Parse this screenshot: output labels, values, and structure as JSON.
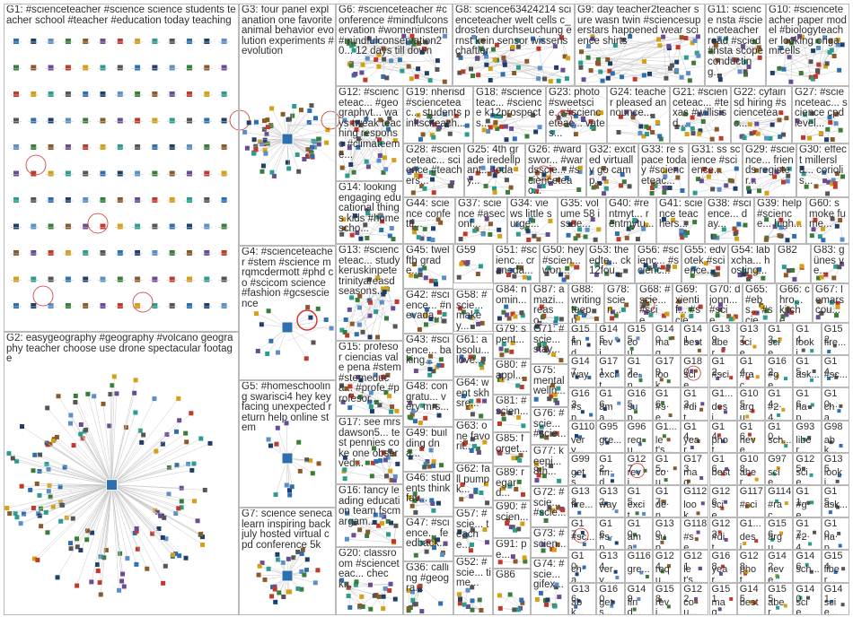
{
  "groups": [
    {
      "id": "G1",
      "label": "G1: #scienceteacher #science science students teacher school #teacher #education today teaching"
    },
    {
      "id": "G2",
      "label": "G2: easygeography #geography #volcano geography teacher choose use drone spectacular footage"
    },
    {
      "id": "G3",
      "label": "G3: four panel explanation one favorite animal behavior evolution experiments #evolution"
    },
    {
      "id": "G4",
      "label": "G4: #scienceteacher #stem #science mrqmcdermott #phd co #scicom science #fashion #gcsescience"
    },
    {
      "id": "G5",
      "label": "G5: #homeschooling swarisci4 hey key facing unexpected return help online stem"
    },
    {
      "id": "G6",
      "label": "G6: #scienceteacher #conference #mindfulconservation #womeninstem #mindfulconservation20... 12 days till down"
    },
    {
      "id": "G7",
      "label": "G7: science senecalearn inspiring back july hosted virtual cpd conference 5k"
    },
    {
      "id": "G8",
      "label": "G8: science63424214 scienceteacher welt cells c_drosten durchseuchung ernst kein sensor wissenschaftler"
    },
    {
      "id": "G9",
      "label": "G9: day teacher2teacher sure wasn twin #sciencesuperstars happened wear science shirts"
    },
    {
      "id": "G10",
      "label": "G10: #scienceteacher paper model #biologyteacher looking origamicells"
    },
    {
      "id": "G11",
      "label": "G11: science nsta #scienceteacher read #scied #nsta scope conducting..."
    },
    {
      "id": "G12",
      "label": "G12: #scienceteac... #geographyt... ways tweak teaching response #climateeme..."
    },
    {
      "id": "G13",
      "label": "G13: #scienceteac... study keruskinpete trinityareasd seasons..."
    },
    {
      "id": "G14",
      "label": "G14: looking engaging educational things kids #homescho..."
    },
    {
      "id": "G15",
      "label": "G15: profesor ciencias vale pena #stem #stemeduca... #profe #profesor..."
    },
    {
      "id": "G16",
      "label": "G16: fancy leading education team fscmargam..."
    },
    {
      "id": "G17",
      "label": "G17: see mrsdawson5... test pennies coke one observed..."
    },
    {
      "id": "G18",
      "label": "G18: #scienceteac... #science k12prospects..."
    },
    {
      "id": "G19",
      "label": "G19: nherisd #scienceteac... students pinksciteach..."
    },
    {
      "id": "G20",
      "label": "G20: classroom #scienceteac... check..."
    },
    {
      "id": "G21",
      "label": "G21: #scienceteac... #texas #willisisd..."
    },
    {
      "id": "G22",
      "label": "G22: cyfairisd hiring #scienceteac..."
    },
    {
      "id": "G23",
      "label": "G23: photo #sweetscie... #scienceteac... vates..."
    },
    {
      "id": "G24",
      "label": "G24: teacher pleased announce..."
    },
    {
      "id": "G25",
      "label": "G25: 4th grade iredellpant... today..."
    },
    {
      "id": "G26",
      "label": "G26: #wardswor... #wardsscie... #scienceteac..."
    },
    {
      "id": "G27",
      "label": "G27: #scienceteac... science cpd level..."
    },
    {
      "id": "G28",
      "label": "G28: #scienceteac... science #teachers..."
    },
    {
      "id": "G29",
      "label": "G29: #science... friends register..."
    },
    {
      "id": "G30",
      "label": "G30: effect millersla... coriolis..."
    },
    {
      "id": "G31",
      "label": "G31: ss science #science..."
    },
    {
      "id": "G32",
      "label": "G32: excited virtually go camp..."
    },
    {
      "id": "G33",
      "label": "G33: re space today #scienceteac..."
    },
    {
      "id": "G34",
      "label": "G34: views little surge..."
    },
    {
      "id": "G35",
      "label": "G35: volume 58 issue..."
    },
    {
      "id": "G36",
      "label": "G36: calling #geogra..."
    },
    {
      "id": "G37",
      "label": "G37: science #aseconf..."
    },
    {
      "id": "G38",
      "label": "G38: #science... day..."
    },
    {
      "id": "G39",
      "label": "G39: help #science... high..."
    },
    {
      "id": "G40",
      "label": "G40: #rentmyt... rentmytu..."
    },
    {
      "id": "G41",
      "label": "G41: science teachers..."
    },
    {
      "id": "G42",
      "label": "G42: #science... #nevada..."
    },
    {
      "id": "G43",
      "label": "G43: #science... baking..."
    },
    {
      "id": "G44",
      "label": "G44: science confetti..."
    },
    {
      "id": "G45",
      "label": "G45: twelfth grade..."
    },
    {
      "id": "G46",
      "label": "G46: students think fav..."
    },
    {
      "id": "G47",
      "label": "G47: #science... feedback..."
    },
    {
      "id": "G48",
      "label": "G48: congratu... very mrs..."
    },
    {
      "id": "G49",
      "label": "G49: building dna..."
    },
    {
      "id": "G50",
      "label": "G50: hey #scien... won..."
    },
    {
      "id": "G51",
      "label": "G51: #scienc... craneda..."
    },
    {
      "id": "G52",
      "label": "G52: #scie... time..."
    },
    {
      "id": "G53",
      "label": "G53: theedte... ck12fou..."
    },
    {
      "id": "G54",
      "label": "G54: labxcha... hosting..."
    },
    {
      "id": "G55",
      "label": "G55: edvotek #science..."
    },
    {
      "id": "G56",
      "label": "G56: #scienc... #scienc..."
    },
    {
      "id": "G57",
      "label": "G57: #scie... teache..."
    },
    {
      "id": "G58",
      "label": "G58: #scie... makey..."
    },
    {
      "id": "G59",
      "label": "G59"
    },
    {
      "id": "G60",
      "label": "G60: smoke fume..."
    },
    {
      "id": "G61",
      "label": "G61: absolu... love..."
    },
    {
      "id": "G62",
      "label": "G62: fall pumpk..."
    },
    {
      "id": "G63",
      "label": "G63: one favorit..."
    },
    {
      "id": "G64",
      "label": "G64: went skhsre..."
    },
    {
      "id": "G65",
      "label": "G65: #ebs... #scie..."
    },
    {
      "id": "G66",
      "label": "G66: chro... kitche..."
    },
    {
      "id": "G67",
      "label": "G67: lemars cou..."
    },
    {
      "id": "G68",
      "label": "G68: #scie... #scie..."
    },
    {
      "id": "G69",
      "label": "G69: xientif... #scie..."
    },
    {
      "id": "G70",
      "label": "G70: djonn... #scie..."
    },
    {
      "id": "G71",
      "label": "G71: #scie... stay..."
    },
    {
      "id": "G72",
      "label": "G72: #scie... #scie..."
    },
    {
      "id": "G73",
      "label": "G73: #scien..."
    },
    {
      "id": "G74",
      "label": "G74: #scie... gifex..."
    },
    {
      "id": "G75",
      "label": "G75: mental welln..."
    },
    {
      "id": "G76",
      "label": "G76: #scie... #scie..."
    },
    {
      "id": "G77",
      "label": "G77: keepi... 8th..."
    },
    {
      "id": "G78",
      "label": "G78: scien..."
    },
    {
      "id": "G79",
      "label": "G79: spent..."
    },
    {
      "id": "G80",
      "label": "G80: #appl..."
    },
    {
      "id": "G81",
      "label": "G81: #scien..."
    },
    {
      "id": "G82",
      "label": "G82"
    },
    {
      "id": "G83",
      "label": "G83: günes ve..."
    },
    {
      "id": "G84",
      "label": "G84: nomin..."
    },
    {
      "id": "G85",
      "label": "G85: forget..."
    },
    {
      "id": "G86",
      "label": "G86"
    },
    {
      "id": "G87",
      "label": "G87: amazi... reaso..."
    },
    {
      "id": "G88",
      "label": "G88: writing teepu..."
    },
    {
      "id": "G89",
      "label": "G89: regard..."
    },
    {
      "id": "G90",
      "label": "G90: #scien..."
    },
    {
      "id": "G91",
      "label": "G91: pe..."
    }
  ],
  "small_groups": [
    "G151",
    "G145",
    "G155",
    "G140",
    "G141",
    "G139",
    "G137",
    "G13...",
    "G14...",
    "G152",
    "G147",
    "G171",
    "G17...",
    "G179",
    "G180",
    "G12...",
    "G14...",
    "G162",
    "G15...",
    "G14...",
    "G163",
    "G16...",
    "G165",
    "G16...",
    "G13...",
    "G1...",
    "G105",
    "G14...",
    "G16...",
    "G10...",
    "G110",
    "G95",
    "G96",
    "G1...",
    "G14...",
    "G14...",
    "G16...",
    "G10...",
    "G93",
    "G98",
    "G99",
    "G12...",
    "G127",
    "G15...",
    "G173",
    "G16...",
    "G108",
    "G97",
    "G125",
    "G135",
    "G133",
    "G132",
    "G15...",
    "G17...",
    "G112",
    "G126",
    "G117",
    "G114",
    "G11...",
    "G15...",
    "G17...",
    "G16...",
    "G10...",
    "G130",
    "G118",
    "G123",
    "G1...",
    "G156",
    "G17...",
    "G10...",
    "G10...",
    "G134",
    "G116",
    "G124",
    "G121",
    "G168",
    "G128",
    "G142",
    "G146",
    "G154",
    "G136",
    "G160",
    "G149",
    "G158",
    "G122"
  ],
  "small_labels": [
    "find...",
    "revi...",
    "cou...",
    "mag...",
    "best",
    "aber...",
    "scie...",
    "scie...",
    "looki...",
    "fire...",
    "way",
    "excit...",
    "den...",
    "look...",
    "scie...",
    "#sci",
    "#rac...",
    "#ge...",
    "ask...",
    "#sc...",
    "#sp...",
    "ama...",
    "sup...",
    "#se...",
    "#dit...",
    "desi...",
    "argu...",
    "#24...",
    "hap...",
    "cha...",
    "very...",
    "gre...",
    "requ...",
    "let's...",
    "year...",
    "phot...",
    "neve...",
    "sch...",
    "liber...",
    "abk...",
    "gets..."
  ],
  "colors": {
    "border": "#b9b9b9",
    "edge": "#c8c8c8",
    "highlight": "#d0302a",
    "node_blue": "#2e6fb0",
    "node_dark": "#1f3f6b"
  }
}
